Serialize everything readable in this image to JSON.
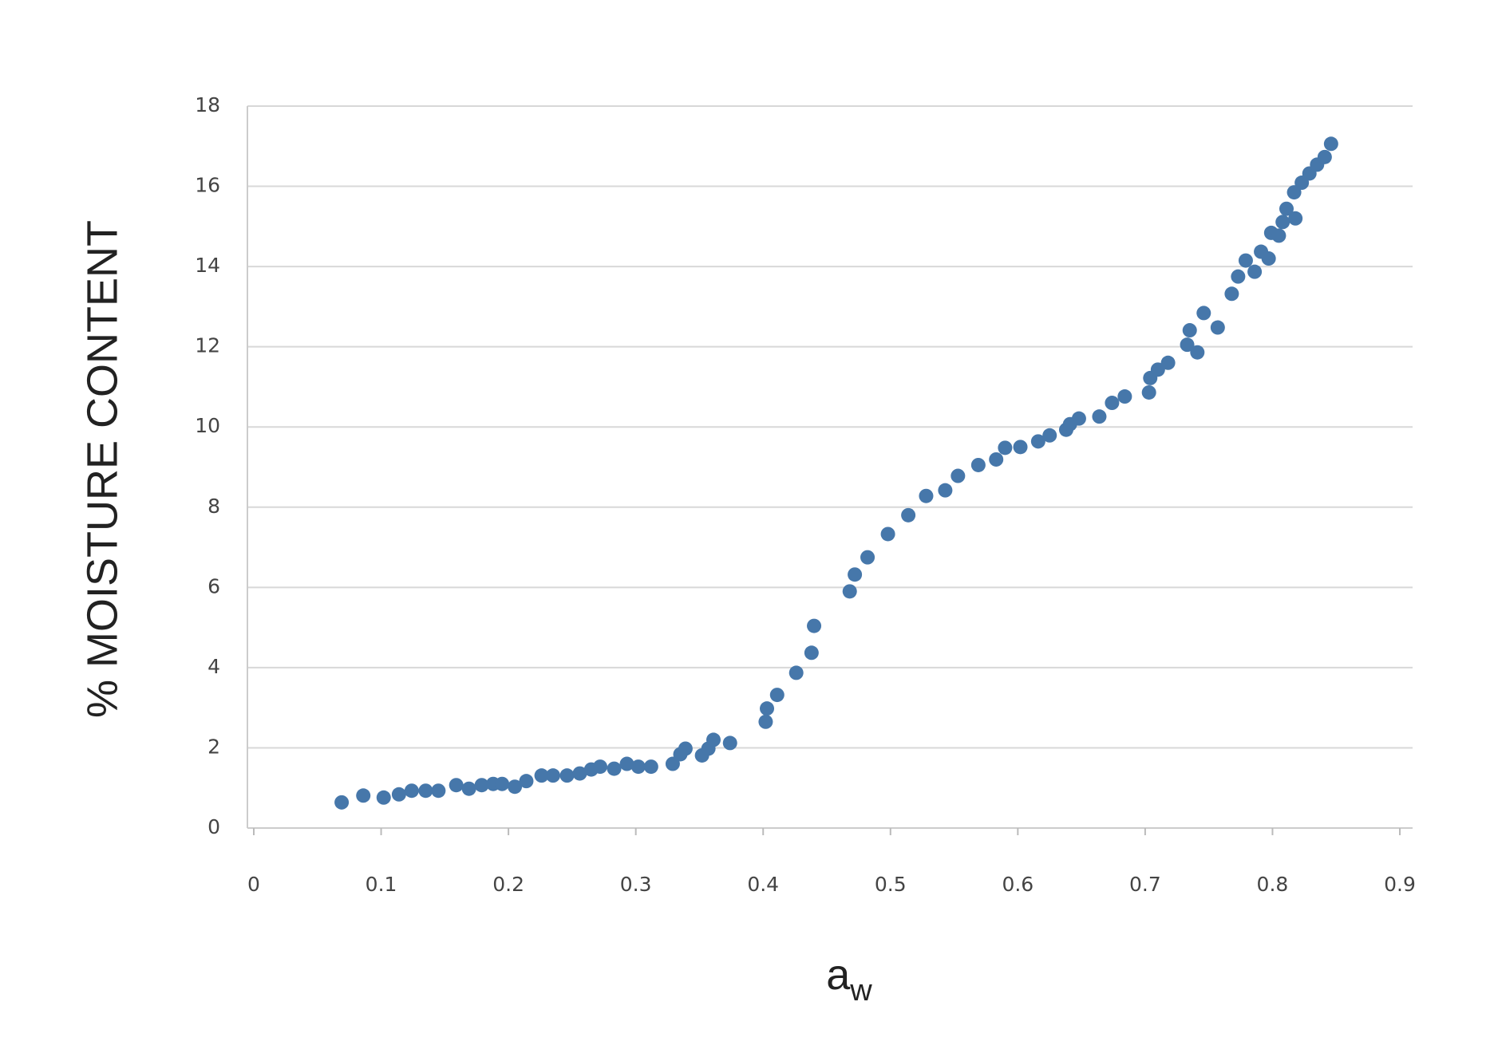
{
  "chart_data": {
    "type": "scatter",
    "y_label": "% MOISTURE CONTENT",
    "x_label": {
      "base": "a",
      "subscript": "w"
    },
    "color": "#4677aa",
    "grid": true,
    "xlim": [
      0,
      0.9
    ],
    "xticks": [
      0,
      0.1,
      0.2,
      0.3,
      0.4,
      0.5,
      0.6,
      0.7,
      0.8,
      0.9
    ],
    "ylim": [
      0,
      18
    ],
    "yticks": [
      0,
      2,
      4,
      6,
      8,
      10,
      12,
      14,
      16,
      18
    ],
    "x": [
      0.069,
      0.086,
      0.102,
      0.114,
      0.124,
      0.135,
      0.145,
      0.159,
      0.169,
      0.179,
      0.188,
      0.195,
      0.205,
      0.214,
      0.226,
      0.235,
      0.246,
      0.256,
      0.265,
      0.272,
      0.283,
      0.293,
      0.302,
      0.312,
      0.329,
      0.335,
      0.339,
      0.352,
      0.357,
      0.361,
      0.374,
      0.402,
      0.403,
      0.411,
      0.426,
      0.438,
      0.44,
      0.468,
      0.472,
      0.482,
      0.498,
      0.514,
      0.528,
      0.543,
      0.553,
      0.569,
      0.583,
      0.59,
      0.602,
      0.616,
      0.625,
      0.638,
      0.641,
      0.648,
      0.664,
      0.674,
      0.684,
      0.703,
      0.704,
      0.71,
      0.718,
      0.733,
      0.735,
      0.741,
      0.746,
      0.757,
      0.768,
      0.773,
      0.779,
      0.786,
      0.791,
      0.797,
      0.799,
      0.805,
      0.808,
      0.811,
      0.817,
      0.818,
      0.823,
      0.829,
      0.835,
      0.841,
      0.846
    ],
    "values": [
      0.64,
      0.81,
      0.76,
      0.84,
      0.93,
      0.93,
      0.93,
      1.07,
      0.98,
      1.07,
      1.1,
      1.1,
      1.03,
      1.17,
      1.31,
      1.31,
      1.31,
      1.36,
      1.46,
      1.53,
      1.48,
      1.6,
      1.53,
      1.53,
      1.6,
      1.84,
      1.98,
      1.81,
      1.98,
      2.2,
      2.12,
      2.65,
      2.98,
      3.32,
      3.87,
      4.37,
      5.04,
      5.9,
      6.32,
      6.75,
      7.33,
      7.8,
      8.28,
      8.42,
      8.78,
      9.05,
      9.19,
      9.48,
      9.5,
      9.64,
      9.79,
      9.93,
      10.07,
      10.21,
      10.26,
      10.6,
      10.76,
      10.86,
      11.22,
      11.43,
      11.6,
      12.05,
      12.41,
      11.86,
      12.84,
      12.48,
      13.32,
      13.75,
      14.15,
      13.87,
      14.37,
      14.2,
      14.84,
      14.77,
      15.11,
      15.44,
      15.85,
      15.2,
      16.09,
      16.32,
      16.54,
      16.73,
      17.06
    ]
  }
}
